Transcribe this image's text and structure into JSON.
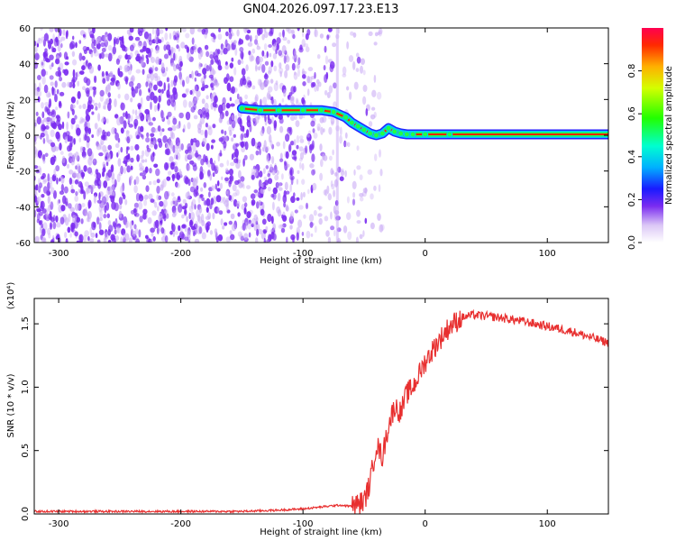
{
  "title": "GN04.2026.097.17.23.E13",
  "colors": {
    "spectrogram_cloud": "#7b2cf0",
    "spectrogram_cloud_light": "#c8a8f5",
    "snr_line": "#e83030"
  },
  "chart_data": [
    {
      "type": "heatmap",
      "xlabel": "Height of straight line (km)",
      "ylabel": "Frequency (Hz)",
      "xlim": [
        -320,
        150
      ],
      "ylim": [
        -60,
        60
      ],
      "xticks": [
        -300,
        -200,
        -100,
        0,
        100
      ],
      "yticks": [
        -60,
        -40,
        -20,
        0,
        20,
        40,
        60
      ],
      "colorbar": {
        "label": "Normalized spectral amplitude",
        "range": [
          0,
          1
        ],
        "ticks": [
          "0.0",
          "0.2",
          "0.4",
          "0.6",
          "0.8"
        ],
        "colormap": "rainbow"
      },
      "ridge": {
        "x": [
          -150,
          -135,
          -120,
          -100,
          -85,
          -75,
          -65,
          -60,
          -55,
          -50,
          -45,
          -40,
          -35,
          -30,
          -25,
          -20,
          -15,
          -10,
          0,
          20,
          60,
          100,
          150
        ],
        "y": [
          15,
          14,
          14,
          14,
          14,
          13,
          10,
          7,
          5,
          3,
          1,
          0,
          1,
          4,
          2,
          1,
          0.5,
          0.5,
          0.5,
          0.5,
          0.5,
          0.5,
          0.5
        ]
      },
      "noise_region_x": [
        -320,
        -70
      ]
    },
    {
      "type": "line",
      "xlabel": "Height of straight line (km)",
      "ylabel": "SNR (10 * v/v)",
      "y_multiplier": "(x10⁴)",
      "xlim": [
        -320,
        150
      ],
      "ylim": [
        0,
        1.7
      ],
      "xticks": [
        -300,
        -200,
        -100,
        0,
        100
      ],
      "yticks": [
        "0.0",
        "0.5",
        "1.0",
        "1.5"
      ],
      "series": [
        {
          "x": [
            -320,
            -300,
            -250,
            -200,
            -150,
            -120,
            -100,
            -90,
            -80,
            -70,
            -60,
            -50,
            -45,
            -40,
            -35,
            -30,
            -25,
            -20,
            -15,
            -10,
            -5,
            0,
            10,
            20,
            30,
            40,
            60,
            80,
            100,
            120,
            140,
            150
          ],
          "y": [
            0.02,
            0.02,
            0.02,
            0.02,
            0.02,
            0.03,
            0.04,
            0.05,
            0.06,
            0.07,
            0.06,
            0.1,
            0.25,
            0.55,
            0.45,
            0.7,
            0.85,
            0.8,
            0.95,
            1.0,
            1.1,
            1.2,
            1.35,
            1.48,
            1.55,
            1.57,
            1.55,
            1.52,
            1.48,
            1.44,
            1.38,
            1.35
          ]
        }
      ]
    }
  ]
}
